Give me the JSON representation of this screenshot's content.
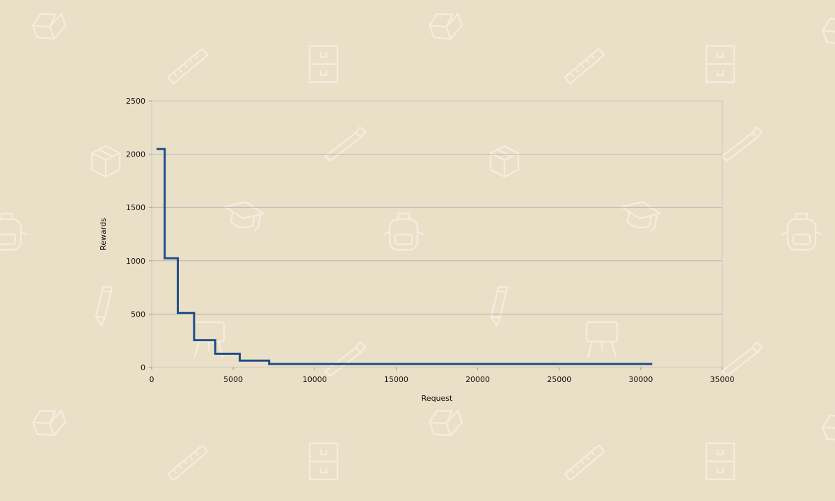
{
  "chart_data": {
    "type": "line",
    "title": "",
    "xlabel": "Request",
    "ylabel": "Rewards",
    "xlim": [
      0,
      35000
    ],
    "ylim": [
      0,
      2500
    ],
    "x_ticks": [
      0,
      5000,
      10000,
      15000,
      20000,
      25000,
      30000,
      35000
    ],
    "y_ticks": [
      0,
      500,
      1000,
      1500,
      2000,
      2500
    ],
    "grid": "horizontal",
    "legend": "none",
    "step": true,
    "series": [
      {
        "color": "#1f4e86",
        "x": [
          300,
          800,
          800,
          1600,
          1600,
          2600,
          2600,
          3900,
          3900,
          5400,
          5400,
          7200,
          7200,
          30700
        ],
        "y": [
          2048,
          2048,
          1024,
          1024,
          512,
          512,
          256,
          256,
          128,
          128,
          64,
          64,
          32,
          32
        ]
      }
    ]
  },
  "background": {
    "color": "#eadfc7",
    "icons": [
      "book-icon",
      "ruler-icon",
      "drawer-icon",
      "pencil-icon",
      "pen-icon",
      "box-icon",
      "graduation-cap-icon",
      "backpack-icon",
      "easel-icon"
    ]
  }
}
